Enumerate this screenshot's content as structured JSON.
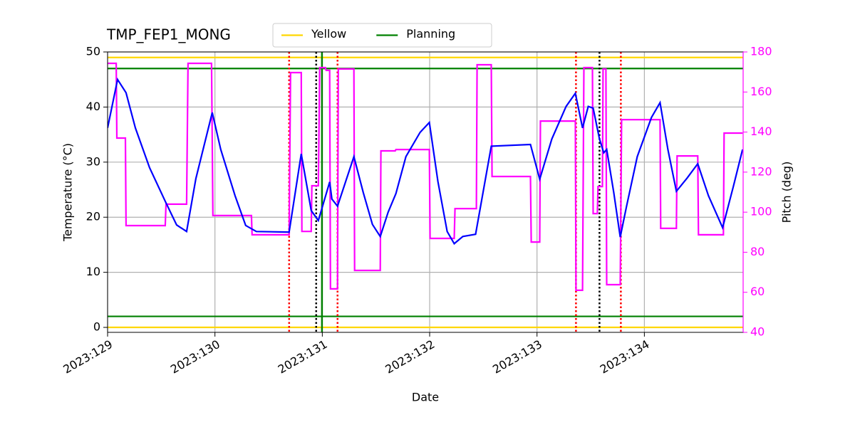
{
  "chart_data": {
    "type": "line",
    "title": "TMP_FEP1_MONG",
    "xlabel": "Date",
    "ylabel": "Temperature (°C)",
    "y2label": "Pitch (deg)",
    "y2color": "#ff00ff",
    "xlim": [
      129,
      134.92
    ],
    "ylim": [
      -0.9,
      50
    ],
    "y2lim": [
      40,
      180
    ],
    "xticks": [
      {
        "value": 129,
        "label": "2023:129"
      },
      {
        "value": 130,
        "label": "2023:130"
      },
      {
        "value": 131,
        "label": "2023:131"
      },
      {
        "value": 132,
        "label": "2023:132"
      },
      {
        "value": 133,
        "label": "2023:133"
      },
      {
        "value": 134,
        "label": "2023:134"
      }
    ],
    "yticks": [
      0,
      10,
      20,
      30,
      40,
      50
    ],
    "y2ticks": [
      40,
      60,
      80,
      100,
      120,
      140,
      160,
      180
    ],
    "grid": true,
    "legend": "upper center",
    "hlines": [
      {
        "name": "Yellow",
        "color": "#ffd700",
        "values": [
          0,
          49
        ]
      },
      {
        "name": "Planning",
        "color": "#008000",
        "values": [
          2,
          47
        ]
      }
    ],
    "vlines": [
      {
        "color": "#ff0000",
        "style": "dotted",
        "x": [
          130.691,
          131.142,
          133.363,
          133.781
        ]
      },
      {
        "color": "#000000",
        "style": "dotted",
        "x": [
          130.943,
          133.582
        ]
      },
      {
        "color": "#008000",
        "style": "solid",
        "x": [
          130.997
        ]
      }
    ],
    "series": [
      {
        "color": "#ff00ff",
        "axis": "y2",
        "x": [
          129.0,
          129.08,
          129.086,
          129.166,
          129.172,
          129.537,
          129.544,
          129.736,
          129.749,
          129.968,
          129.981,
          130.34,
          130.346,
          130.691,
          130.704,
          130.804,
          130.81,
          130.897,
          130.903,
          130.963,
          130.976,
          131.029,
          131.036,
          131.069,
          131.076,
          131.142,
          131.149,
          131.294,
          131.301,
          131.54,
          131.546,
          131.679,
          131.686,
          131.997,
          132.004,
          132.229,
          132.236,
          132.435,
          132.442,
          132.574,
          132.581,
          132.939,
          132.946,
          133.025,
          133.032,
          133.357,
          133.363,
          133.424,
          133.437,
          133.516,
          133.523,
          133.562,
          133.568,
          133.609,
          133.615,
          133.642,
          133.649,
          133.775,
          133.788,
          134.146,
          134.152,
          134.298,
          134.305,
          134.497,
          134.504,
          134.736,
          134.743,
          134.915
        ],
        "values": [
          174.3,
          174.3,
          137,
          137,
          93.3,
          93.3,
          104,
          104,
          174.3,
          174.3,
          98.3,
          98.3,
          88.7,
          88.7,
          169.7,
          169.7,
          90.4,
          90.4,
          113.2,
          113.2,
          172.2,
          172.2,
          170.8,
          170.8,
          61.7,
          61.7,
          171.5,
          171.5,
          70.9,
          70.9,
          130.6,
          130.6,
          131.3,
          131.3,
          86.9,
          86.9,
          101.8,
          101.8,
          173.6,
          173.6,
          117.8,
          117.8,
          85.1,
          85.1,
          145.5,
          145.5,
          61,
          61,
          172.2,
          172.2,
          99.3,
          99.3,
          112.8,
          112.8,
          171.5,
          171.5,
          63.8,
          63.8,
          146.2,
          146.2,
          91.9,
          91.9,
          128.1,
          128.1,
          88.7,
          88.7,
          139.5,
          139.5
        ]
      },
      {
        "color": "#0000ff",
        "x": [
          129.0,
          129.093,
          129.172,
          129.259,
          129.391,
          129.537,
          129.643,
          129.736,
          129.822,
          129.975,
          130.054,
          130.187,
          130.286,
          130.386,
          130.691,
          130.804,
          130.897,
          130.963,
          131.069,
          131.089,
          131.142,
          131.294,
          131.381,
          131.467,
          131.54,
          131.613,
          131.686,
          131.779,
          131.911,
          131.997,
          132.077,
          132.163,
          132.229,
          132.309,
          132.428,
          132.574,
          132.939,
          133.025,
          133.138,
          133.271,
          133.357,
          133.424,
          133.477,
          133.523,
          133.582,
          133.622,
          133.649,
          133.715,
          133.775,
          133.834,
          133.934,
          134.066,
          134.146,
          134.219,
          134.298,
          134.398,
          134.497,
          134.597,
          134.729,
          134.829,
          134.915
        ],
        "values": [
          36.2,
          45.0,
          42.6,
          36.2,
          29.0,
          22.9,
          18.6,
          17.4,
          27.0,
          39.0,
          32.3,
          23.9,
          18.5,
          17.4,
          17.3,
          31.5,
          21.2,
          19.4,
          26.4,
          23.3,
          22.0,
          31.0,
          24.5,
          18.7,
          16.5,
          20.9,
          24.3,
          31.0,
          35.4,
          37.2,
          26.5,
          17.4,
          15.2,
          16.5,
          16.9,
          32.9,
          33.2,
          26.9,
          34.2,
          40.1,
          42.5,
          36.2,
          40.1,
          39.8,
          34.2,
          31.7,
          32.3,
          24.5,
          16.4,
          22.0,
          31.0,
          38.1,
          40.8,
          32.3,
          24.7,
          27.1,
          29.7,
          23.9,
          18.1,
          25.6,
          32.3
        ]
      }
    ]
  }
}
